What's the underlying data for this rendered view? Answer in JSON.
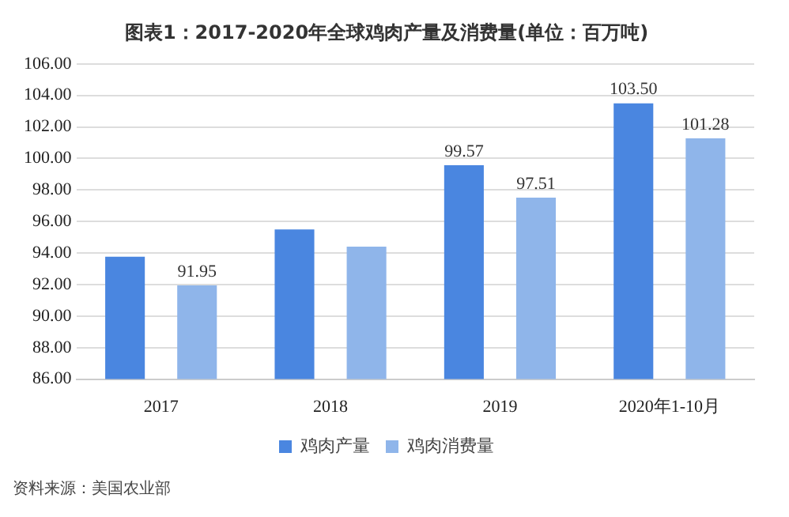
{
  "chart_data": {
    "type": "bar",
    "title": "图表1：2017-2020年全球鸡肉产量及消费量(单位：百万吨)",
    "categories": [
      "2017",
      "2018",
      "2019",
      "2020年1-10月"
    ],
    "series": [
      {
        "name": "鸡肉产量",
        "color": "#4a86e0",
        "values": [
          93.76,
          95.5,
          99.57,
          103.5
        ],
        "value_labels": [
          null,
          null,
          "99.57",
          "103.50"
        ]
      },
      {
        "name": "鸡肉消费量",
        "color": "#8fb5ea",
        "values": [
          91.95,
          94.4,
          97.51,
          101.28
        ],
        "value_labels": [
          "91.95",
          null,
          "97.51",
          "101.28"
        ]
      }
    ],
    "ylim": [
      86,
      106
    ],
    "yticks": [
      "86.00",
      "88.00",
      "90.00",
      "92.00",
      "94.00",
      "96.00",
      "98.00",
      "100.00",
      "102.00",
      "104.00",
      "106.00"
    ],
    "grid": "y",
    "legend": "bottom",
    "annotations": [
      "资料来源：美国农业部"
    ]
  }
}
